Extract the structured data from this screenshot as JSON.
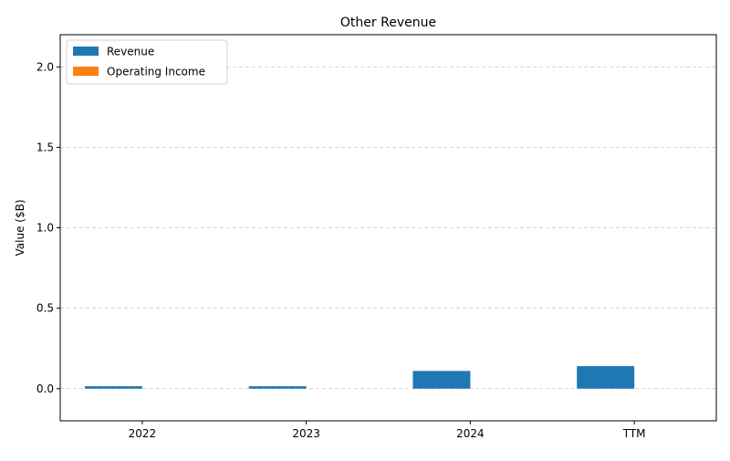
{
  "chart_data": {
    "type": "bar",
    "title": "Other Revenue",
    "xlabel": "",
    "ylabel": "Value ($B)",
    "categories": [
      "2022",
      "2023",
      "2024",
      "TTM"
    ],
    "series": [
      {
        "name": "Revenue",
        "values": [
          0.015,
          0.015,
          0.11,
          0.14
        ],
        "color": "#1f77b4"
      },
      {
        "name": "Operating Income",
        "values": [
          0,
          0,
          0,
          0
        ],
        "color": "#ff7f0e"
      }
    ],
    "ylim": [
      -0.2,
      2.2
    ],
    "yticks": [
      0.0,
      0.5,
      1.0,
      1.5,
      2.0
    ],
    "ytick_labels": [
      "0.0",
      "0.5",
      "1.0",
      "1.5",
      "2.0"
    ],
    "grid": "y-dashed",
    "legend_position": "top-left"
  }
}
